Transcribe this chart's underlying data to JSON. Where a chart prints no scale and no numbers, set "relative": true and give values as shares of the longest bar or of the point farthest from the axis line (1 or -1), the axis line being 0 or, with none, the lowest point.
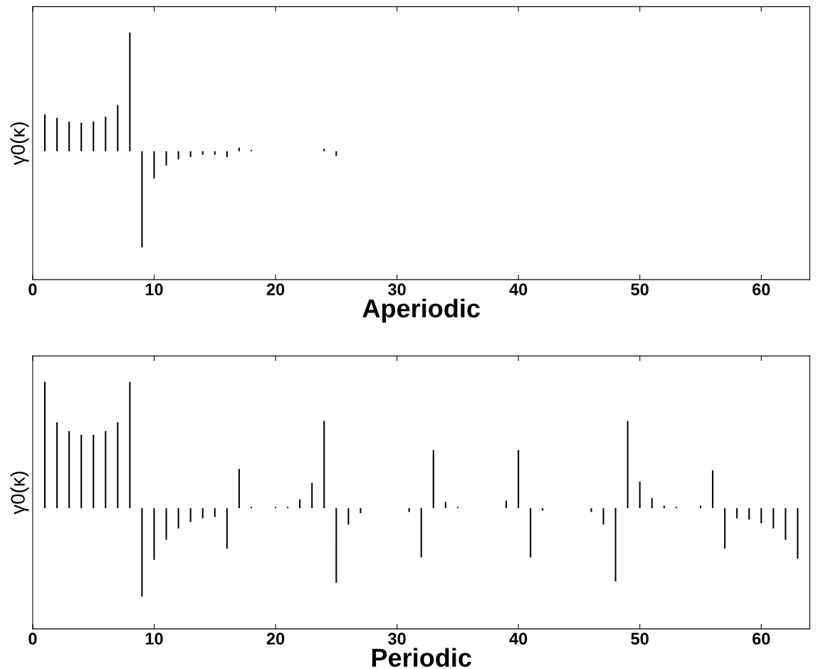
{
  "chart_data": [
    {
      "type": "bar",
      "relative": true,
      "xlabel": "Aperiodic",
      "ylabel": "γ0(κ)",
      "tick_labels": "x",
      "grid": false,
      "xlim": [
        0,
        64
      ],
      "xticks": [
        0,
        10,
        20,
        30,
        40,
        50,
        60
      ],
      "x": [
        1,
        2,
        3,
        4,
        5,
        6,
        7,
        8,
        9,
        10,
        11,
        12,
        13,
        14,
        15,
        16,
        17,
        18,
        24,
        25
      ],
      "series": [
        {
          "color": "#000000",
          "values": [
            0.31,
            0.28,
            0.25,
            0.24,
            0.25,
            0.29,
            0.39,
            1.0,
            -0.81,
            -0.23,
            -0.12,
            -0.07,
            -0.05,
            -0.03,
            -0.03,
            -0.05,
            0.03,
            0.01,
            0.02,
            -0.04
          ]
        }
      ]
    },
    {
      "type": "bar",
      "relative": true,
      "xlabel": "Periodic",
      "ylabel": "γ0(κ)",
      "tick_labels": "x",
      "grid": false,
      "xlim": [
        0,
        64
      ],
      "xticks": [
        0,
        10,
        20,
        30,
        40,
        50,
        60
      ],
      "x": [
        1,
        2,
        3,
        4,
        5,
        6,
        7,
        8,
        9,
        10,
        11,
        12,
        13,
        14,
        15,
        16,
        17,
        18,
        20,
        21,
        22,
        23,
        24,
        25,
        26,
        27,
        31,
        32,
        33,
        34,
        35,
        39,
        40,
        41,
        42,
        46,
        47,
        48,
        49,
        50,
        51,
        52,
        53,
        55,
        56,
        57,
        58,
        59,
        60,
        61,
        62,
        63
      ],
      "series": [
        {
          "color": "#000000",
          "values": [
            1.0,
            0.68,
            0.61,
            0.58,
            0.58,
            0.61,
            0.68,
            1.0,
            -0.7,
            -0.41,
            -0.25,
            -0.16,
            -0.11,
            -0.08,
            -0.07,
            -0.32,
            0.31,
            0.01,
            0.01,
            0.01,
            0.07,
            0.2,
            0.69,
            -0.59,
            -0.13,
            -0.04,
            -0.03,
            -0.39,
            0.46,
            0.05,
            0.01,
            0.06,
            0.46,
            -0.39,
            -0.02,
            -0.03,
            -0.13,
            -0.58,
            0.69,
            0.21,
            0.08,
            0.02,
            0.01,
            0.02,
            0.3,
            -0.32,
            -0.08,
            -0.09,
            -0.12,
            -0.16,
            -0.25,
            -0.4
          ]
        }
      ]
    }
  ]
}
